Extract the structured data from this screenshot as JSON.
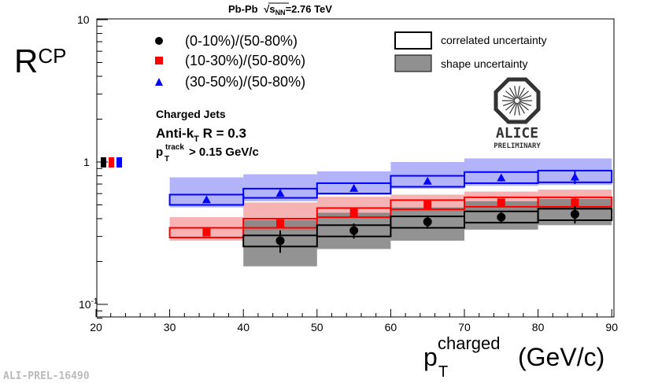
{
  "chart_data": {
    "type": "scatter",
    "title": "Pb-Pb √s_NN=2.76 TeV",
    "title_parts": {
      "system": "Pb-Pb",
      "sqrt": "√",
      "s": "s",
      "sub": "NN",
      "energy": "=2.76 TeV"
    },
    "ylabel": {
      "main": "R",
      "sub": "CP"
    },
    "xlabel": {
      "p": "p",
      "sub": "T",
      "sup": "charged",
      "unit": "(GeV/c)"
    },
    "xlim": [
      20,
      90
    ],
    "ylim": [
      0.08,
      10
    ],
    "yscale": "log",
    "x_ticks": [
      "20",
      "30",
      "40",
      "50",
      "60",
      "70",
      "80",
      "90"
    ],
    "y_ticks": [
      {
        "value": 10,
        "label": "10"
      },
      {
        "value": 1,
        "label": "1"
      },
      {
        "value": 0.1,
        "label": "10",
        "sup": "-1"
      }
    ],
    "bins": [
      [
        30,
        40
      ],
      [
        40,
        50
      ],
      [
        50,
        60
      ],
      [
        60,
        70
      ],
      [
        70,
        80
      ],
      [
        80,
        90
      ]
    ],
    "series": [
      {
        "name": "(0-10%)/(50-80%)",
        "marker": "circle",
        "color": "#000000",
        "fill": "#808080",
        "x": [
          45,
          55,
          65,
          75,
          85
        ],
        "values": [
          0.28,
          0.33,
          0.38,
          0.41,
          0.43
        ],
        "stat_err": [
          0.05,
          0.04,
          0.04,
          0.04,
          0.06
        ],
        "correlated_box": [
          [
            0.255,
            0.305
          ],
          [
            0.3,
            0.36
          ],
          [
            0.345,
            0.415
          ],
          [
            0.375,
            0.45
          ],
          [
            0.39,
            0.47
          ]
        ],
        "shape_band": [
          [
            0.185,
            0.39
          ],
          [
            0.245,
            0.44
          ],
          [
            0.28,
            0.48
          ],
          [
            0.335,
            0.53
          ],
          [
            0.36,
            0.55
          ]
        ]
      },
      {
        "name": "(10-30%)/(50-80%)",
        "marker": "square",
        "color": "#ff0000",
        "fill": "#f4a0a0",
        "x": [
          35,
          45,
          55,
          65,
          75,
          85
        ],
        "values": [
          0.32,
          0.37,
          0.44,
          0.5,
          0.52,
          0.52
        ],
        "stat_err": [
          0.01,
          0.02,
          0.02,
          0.02,
          0.03,
          0.04
        ],
        "correlated_box": [
          [
            0.295,
            0.345
          ],
          [
            0.345,
            0.4
          ],
          [
            0.41,
            0.475
          ],
          [
            0.465,
            0.54
          ],
          [
            0.485,
            0.565
          ],
          [
            0.485,
            0.565
          ]
        ],
        "shape_band": [
          [
            0.28,
            0.41
          ],
          [
            0.33,
            0.52
          ],
          [
            0.4,
            0.57
          ],
          [
            0.45,
            0.59
          ],
          [
            0.46,
            0.62
          ],
          [
            0.46,
            0.64
          ]
        ]
      },
      {
        "name": "(30-50%)/(50-80%)",
        "marker": "triangle",
        "color": "#0000ff",
        "fill": "#a0a0f8",
        "x": [
          35,
          45,
          55,
          65,
          75,
          85
        ],
        "values": [
          0.54,
          0.6,
          0.65,
          0.73,
          0.77,
          0.78
        ],
        "stat_err": [
          0.01,
          0.02,
          0.02,
          0.03,
          0.04,
          0.08
        ],
        "correlated_box": [
          [
            0.5,
            0.59
          ],
          [
            0.56,
            0.65
          ],
          [
            0.6,
            0.71
          ],
          [
            0.67,
            0.8
          ],
          [
            0.71,
            0.85
          ],
          [
            0.72,
            0.87
          ]
        ],
        "shape_band": [
          [
            0.48,
            0.78
          ],
          [
            0.53,
            0.82
          ],
          [
            0.59,
            0.86
          ],
          [
            0.65,
            1.0
          ],
          [
            0.68,
            1.06
          ],
          [
            0.69,
            1.06
          ]
        ]
      }
    ],
    "normalization_boxes": [
      {
        "color": "#000000",
        "value": 1.0
      },
      {
        "color": "#ff0000",
        "value": 1.0
      },
      {
        "color": "#0000ff",
        "value": 1.0
      }
    ],
    "legend": {
      "placement": "top-left",
      "uncertainty_entries": [
        "correlated uncertainty",
        "shape uncertainty"
      ]
    },
    "annotations": {
      "jets": "Charged Jets",
      "algo_prefix": "Anti-k",
      "algo_sub": "T",
      "algo_suffix": " R = 0.3",
      "cut_p": "p",
      "cut_sub": "T",
      "cut_sup": "track",
      "cut_suffix": " > 0.15 GeV/c",
      "logo_text": "ALICE",
      "logo_subtext": "PRELIMINARY",
      "figure_id": "ALI-PREL-16490"
    }
  }
}
